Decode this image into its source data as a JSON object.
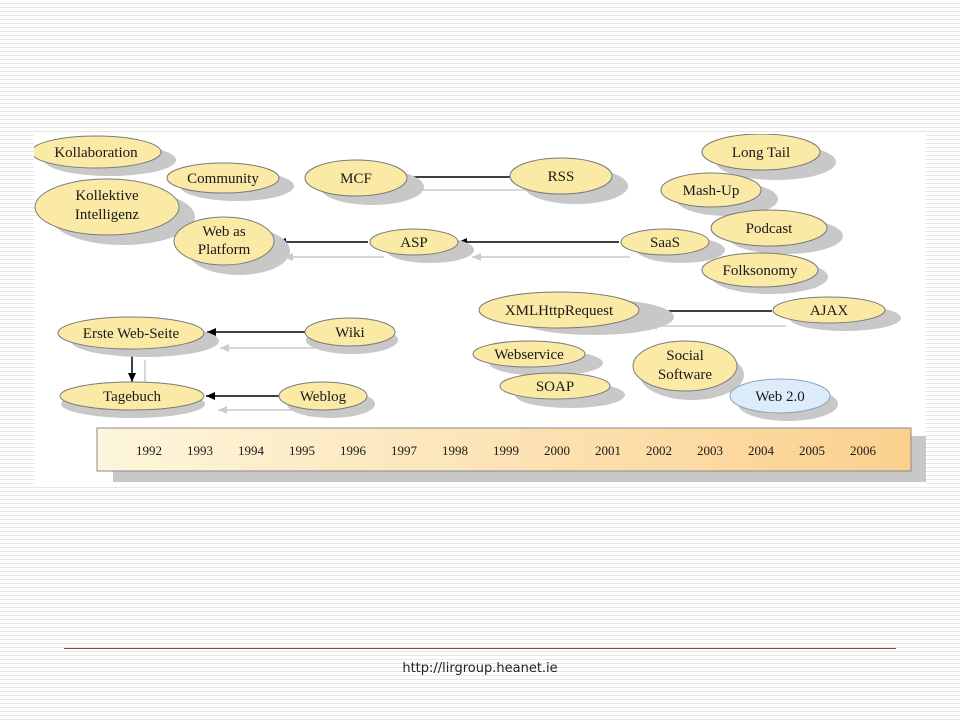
{
  "diagram": {
    "nodes": {
      "kollaboration": "Kollaboration",
      "community": "Community",
      "kollektive_1": "Kollektive",
      "kollektive_2": "Intelligenz",
      "mcf": "MCF",
      "rss": "RSS",
      "long_tail": "Long Tail",
      "mash_up": "Mash-Up",
      "web_as_platform_1": "Web as",
      "web_as_platform_2": "Platform",
      "asp": "ASP",
      "saas": "SaaS",
      "podcast": "Podcast",
      "folksonomy": "Folksonomy",
      "xmlhttprequest": "XMLHttpRequest",
      "ajax": "AJAX",
      "erste_web_seite": "Erste Web-Seite",
      "wiki": "Wiki",
      "webservice": "Webservice",
      "social_software_1": "Social",
      "social_software_2": "Software",
      "soap": "SOAP",
      "tagebuch": "Tagebuch",
      "weblog": "Weblog",
      "web_2_0": "Web 2.0"
    },
    "timeline_years": [
      "1992",
      "1993",
      "1994",
      "1995",
      "1996",
      "1997",
      "1998",
      "1999",
      "2000",
      "2001",
      "2002",
      "2003",
      "2004",
      "2005",
      "2006"
    ]
  },
  "colors": {
    "node_fill": "#fbe9a6",
    "highlight_fill": "#dcecfb",
    "shadow": "#c8c8c8",
    "timeline_start": "#fdf6dc",
    "timeline_end": "#fbd08e"
  },
  "footer": {
    "url": "http://lirgroup.heanet.ie"
  }
}
